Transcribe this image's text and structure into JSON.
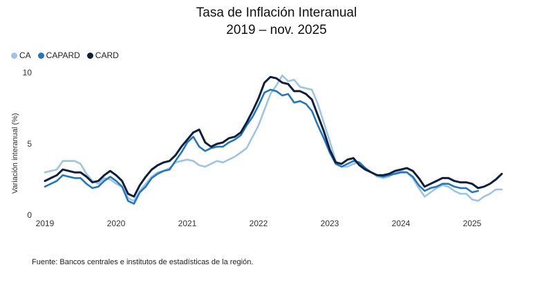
{
  "title_line1": "Tasa de Inflación Interanual",
  "title_line2": "2019 – nov. 2025",
  "source": "Fuente: Bancos centrales e institutos de estadísticas de la región.",
  "chart_data": {
    "type": "line",
    "title": "Tasa de Inflación Interanual 2019 – nov. 2025",
    "xlabel": "",
    "ylabel": "Variación interanual (%)",
    "ylim": [
      0,
      10
    ],
    "yticks": [
      0,
      5,
      10
    ],
    "xticks": [
      "2019",
      "2020",
      "2021",
      "2022",
      "2023",
      "2024",
      "2025"
    ],
    "x_start": "2019-01",
    "x_end": "2025-11",
    "legend_position": "top-left",
    "grid": false,
    "series": [
      {
        "name": "CA",
        "color": "#9dc3e6",
        "values": [
          3.0,
          3.1,
          3.2,
          3.8,
          3.8,
          3.8,
          3.6,
          2.9,
          2.4,
          2.2,
          2.6,
          2.5,
          2.2,
          2.0,
          1.2,
          1.0,
          1.7,
          2.2,
          2.7,
          3.0,
          3.1,
          3.3,
          3.7,
          3.8,
          3.9,
          3.8,
          3.5,
          3.4,
          3.6,
          3.8,
          3.7,
          3.9,
          4.1,
          4.4,
          4.7,
          5.5,
          6.3,
          7.4,
          8.5,
          9.1,
          9.8,
          9.4,
          9.5,
          9.0,
          8.9,
          8.8,
          7.8,
          6.5,
          5.2,
          3.8,
          3.4,
          3.4,
          3.6,
          3.7,
          3.3,
          3.0,
          2.7,
          2.6,
          2.7,
          3.0,
          3.1,
          3.0,
          2.6,
          1.9,
          1.3,
          1.6,
          1.9,
          2.1,
          2.0,
          1.7,
          1.5,
          1.5,
          1.1,
          1.0,
          1.3,
          1.5,
          1.8,
          1.8,
          null,
          null,
          null,
          null,
          null
        ]
      },
      {
        "name": "CAPARD",
        "color": "#1f77c4",
        "values": [
          2.0,
          2.2,
          2.4,
          2.8,
          2.7,
          2.6,
          2.6,
          2.2,
          1.9,
          2.0,
          2.4,
          2.7,
          2.4,
          2.0,
          1.0,
          0.8,
          1.6,
          2.0,
          2.6,
          2.9,
          3.1,
          3.2,
          3.8,
          4.4,
          5.1,
          5.5,
          4.8,
          4.5,
          4.7,
          4.8,
          4.8,
          5.1,
          5.3,
          5.6,
          6.3,
          6.9,
          7.7,
          8.6,
          8.8,
          8.7,
          8.4,
          8.5,
          7.9,
          8.0,
          7.8,
          7.3,
          6.3,
          5.4,
          4.4,
          3.6,
          3.4,
          3.6,
          3.8,
          3.7,
          3.3,
          3.0,
          2.8,
          2.7,
          2.8,
          2.9,
          3.0,
          3.0,
          2.7,
          2.1,
          1.7,
          1.9,
          2.0,
          2.2,
          2.2,
          2.0,
          1.9,
          1.9,
          1.6,
          1.7,
          null,
          null,
          null,
          null,
          null,
          null,
          null,
          null,
          null
        ]
      },
      {
        "name": "CARD",
        "color": "#0d1f3c",
        "values": [
          2.4,
          2.6,
          2.8,
          3.2,
          3.1,
          3.0,
          3.0,
          2.7,
          2.3,
          2.4,
          2.8,
          3.1,
          2.8,
          2.4,
          1.5,
          1.3,
          2.1,
          2.7,
          3.2,
          3.5,
          3.7,
          3.8,
          4.2,
          4.8,
          5.3,
          5.8,
          6.0,
          5.1,
          4.8,
          5.0,
          5.1,
          5.4,
          5.5,
          5.8,
          6.5,
          7.3,
          8.2,
          9.3,
          9.7,
          9.6,
          9.3,
          9.2,
          8.7,
          8.7,
          8.5,
          8.1,
          7.0,
          5.9,
          4.6,
          3.7,
          3.6,
          3.9,
          4.0,
          3.5,
          3.2,
          3.0,
          2.8,
          2.8,
          2.9,
          3.1,
          3.2,
          3.3,
          3.1,
          2.6,
          2.0,
          2.2,
          2.4,
          2.6,
          2.6,
          2.4,
          2.3,
          2.3,
          2.2,
          1.9,
          2.0,
          2.2,
          2.5,
          2.9,
          null,
          null,
          null,
          null,
          null
        ]
      }
    ]
  }
}
